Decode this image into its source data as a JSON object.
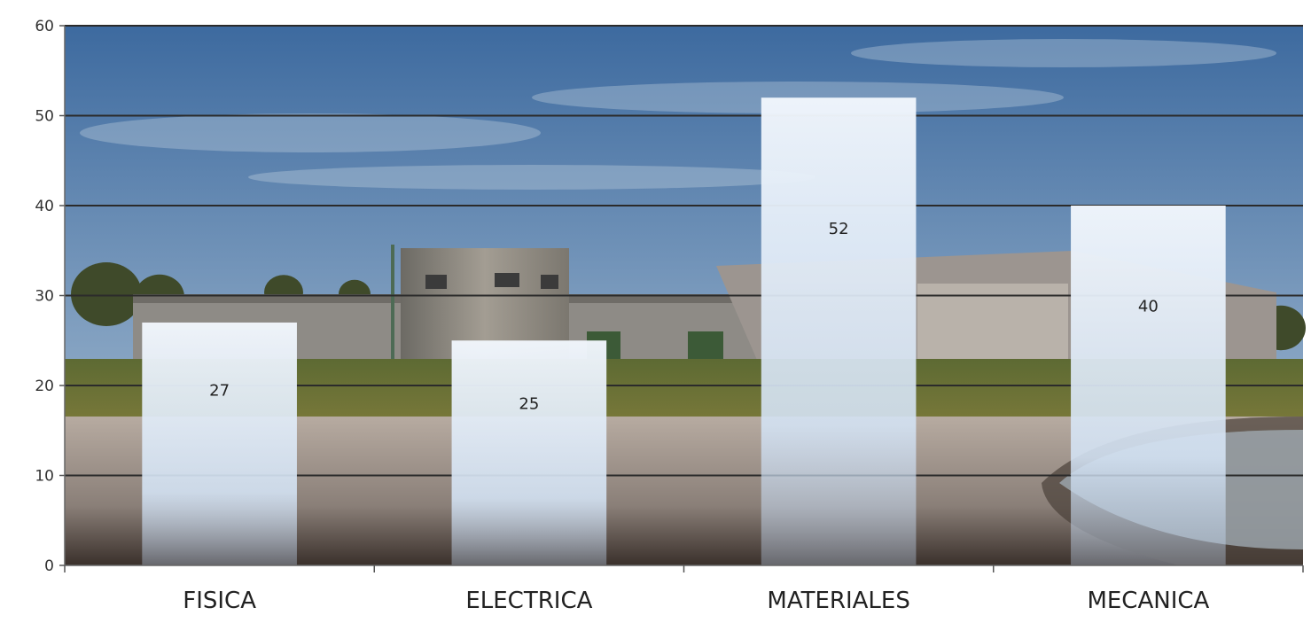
{
  "chart_data": {
    "type": "bar",
    "title": "",
    "xlabel": "",
    "ylabel": "",
    "categories": [
      "FISICA",
      "ELECTRICA",
      "MATERIALES",
      "MECANICA"
    ],
    "values": [
      27,
      25,
      52,
      40
    ],
    "data_labels": [
      "27",
      "25",
      "52",
      "40"
    ],
    "ylim": [
      0,
      60
    ],
    "yticks": [
      "0",
      "10",
      "20",
      "30",
      "40",
      "50",
      "60"
    ],
    "grid": true,
    "legend": "none",
    "background": "photograph of a building under a blue sky",
    "colors": {
      "bar_top": "#eef4fb",
      "bar_bottom": "#c8daf0",
      "grid": "#2b2b2b",
      "sky_top": "#3e6a9e",
      "sky_bottom": "#9ab3cc"
    }
  }
}
